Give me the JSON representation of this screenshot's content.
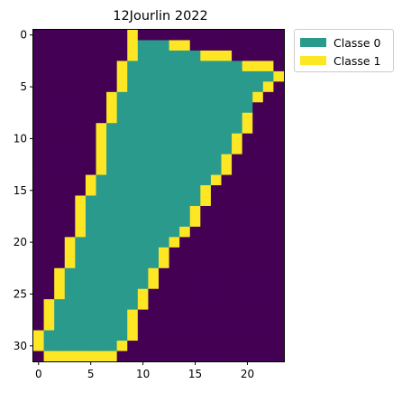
{
  "chart_data": {
    "type": "heatmap",
    "title": "12Jourlin 2022",
    "xlabel": "",
    "ylabel": "",
    "x_ticks": [
      0,
      5,
      10,
      15,
      20
    ],
    "y_ticks": [
      0,
      5,
      10,
      15,
      20,
      25,
      30
    ],
    "xlim": [
      -0.5,
      23.5
    ],
    "ylim": [
      31.5,
      -0.5
    ],
    "n_rows": 32,
    "n_cols": 24,
    "legend_position": "outside-top-right",
    "classes": [
      {
        "name": "Classe 0",
        "value": 1,
        "color": "#2a9a8c"
      },
      {
        "name": "Classe 1",
        "value": 2,
        "color": "#fde725"
      }
    ],
    "background": {
      "value": 0,
      "color": "#440154"
    },
    "rows": [
      "000000000200000000000000",
      "000000000211122000000000",
      "000000000211111122200000",
      "000000002111111111112220",
      "000000002111111111111112",
      "000000002111111111111120",
      "000000021111111111111200",
      "000000021111111111111000",
      "000000021111111111112000",
      "000000211111111111112000",
      "000000211111111111120000",
      "000000211111111111120000",
      "000000211111111111200000",
      "000000211111111111200000",
      "000002111111111112000000",
      "000002111111111120000000",
      "000021111111111120000000",
      "000021111111111200000000",
      "000021111111111200000000",
      "000021111111112000000000",
      "000211111111120000000000",
      "000211111111200000000000",
      "000211111111200000000000",
      "002111111112000000000000",
      "002111111112000000000000",
      "002111111120000000000000",
      "021111111120000000000000",
      "021111111200000000000000",
      "021111111200000000000000",
      "211111111200000000000000",
      "211111112000000000000000",
      "022222220000000000000000"
    ]
  }
}
